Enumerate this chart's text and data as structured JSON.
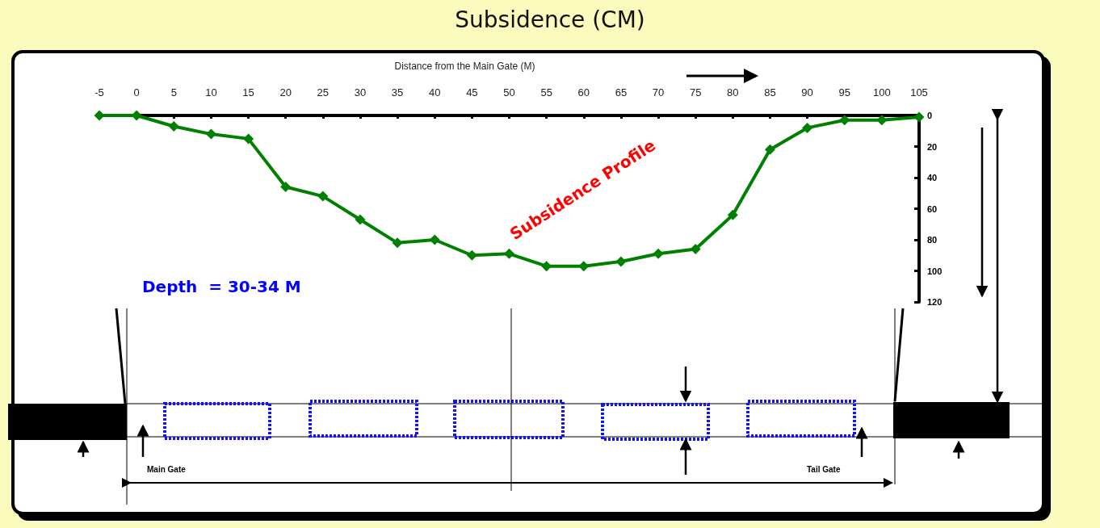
{
  "chart_data": {
    "type": "line",
    "title": "Subsidence (CM)",
    "xlabel": "Distance from the Main Gate (M)",
    "categories": [
      "-5",
      "0",
      "5",
      "10",
      "15",
      "20",
      "25",
      "30",
      "35",
      "40",
      "45",
      "50",
      "55",
      "60",
      "65",
      "70",
      "75",
      "80",
      "85",
      "90",
      "95",
      "100",
      "105"
    ],
    "series": [
      {
        "color": "#008000",
        "values": [
          0,
          0,
          7,
          12,
          15,
          46,
          52,
          67,
          82,
          80,
          90,
          89,
          97,
          97,
          94,
          89,
          86,
          64,
          22,
          8,
          3,
          3,
          1
        ]
      }
    ],
    "ylim": [
      120,
      0
    ],
    "yticks": [
      0,
      20,
      40,
      60,
      80,
      100,
      120
    ],
    "grid": false,
    "marker": "diamond",
    "annotations": [
      "Subsidence Profile",
      "Depth  = 30-34 M",
      "Main Gate",
      "Tail Gate"
    ]
  }
}
